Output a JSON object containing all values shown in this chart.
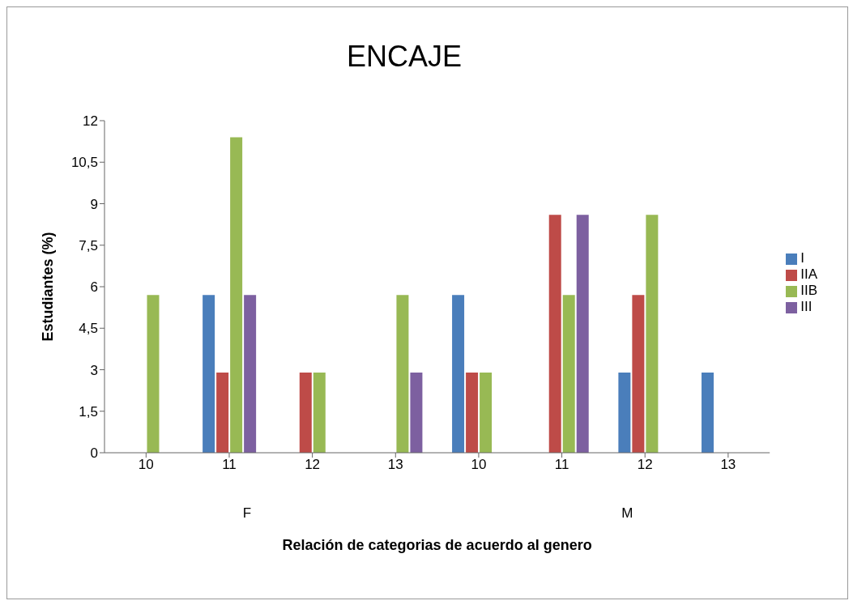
{
  "chart_data": {
    "type": "bar",
    "title": "ENCAJE",
    "xlabel": "Relación de categorias de acuerdo al genero",
    "ylabel": "Estudiantes (%)",
    "categories": [
      "10",
      "11",
      "12",
      "13",
      "10",
      "11",
      "12",
      "13"
    ],
    "annotations": [
      "F",
      "M"
    ],
    "series": [
      {
        "name": "I",
        "color": "#4a7ebb",
        "values": [
          0,
          5.7,
          0,
          0,
          5.7,
          0,
          2.9,
          2.9
        ]
      },
      {
        "name": "IIA",
        "color": "#be4b48",
        "values": [
          0,
          2.9,
          2.9,
          0,
          2.9,
          8.6,
          5.7,
          0
        ]
      },
      {
        "name": "IIB",
        "color": "#98b954",
        "values": [
          5.7,
          11.4,
          2.9,
          5.7,
          2.9,
          5.7,
          8.6,
          0
        ]
      },
      {
        "name": "III",
        "color": "#7d60a0",
        "values": [
          0,
          5.7,
          0,
          2.9,
          0,
          8.6,
          0,
          0
        ]
      }
    ],
    "ylim": [
      0,
      12
    ],
    "yticks": [
      0,
      {
        "value": 1.5,
        "label": "1,5"
      },
      3,
      {
        "value": 4.5,
        "label": "4,5"
      },
      6,
      {
        "value": 7.5,
        "label": "7,5"
      },
      9,
      {
        "value": 10.5,
        "label": "10,5"
      },
      12
    ],
    "legend": "right"
  }
}
